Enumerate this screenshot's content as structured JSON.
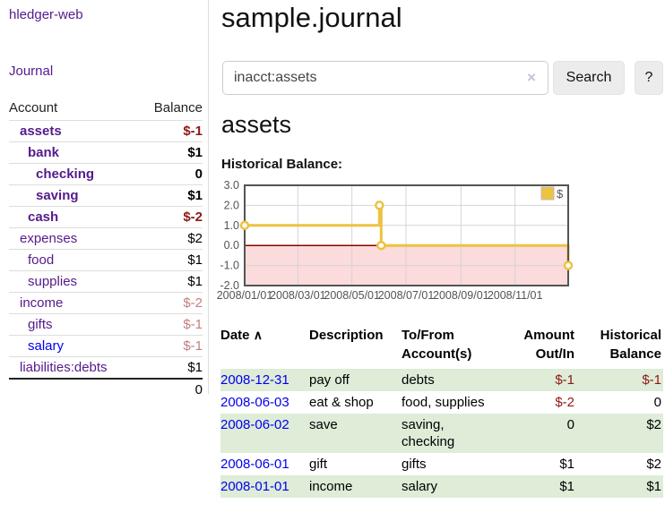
{
  "sidebar": {
    "app_title": "hledger-web",
    "nav": {
      "journal_label": "Journal"
    },
    "accounts_table": {
      "headers": {
        "account": "Account",
        "balance": "Balance"
      },
      "rows": [
        {
          "name": "assets",
          "balance": "$-1"
        },
        {
          "name": "bank",
          "balance": "$1"
        },
        {
          "name": "checking",
          "balance": "0"
        },
        {
          "name": "saving",
          "balance": "$1"
        },
        {
          "name": "cash",
          "balance": "$-2"
        },
        {
          "name": "expenses",
          "balance": "$2"
        },
        {
          "name": "food",
          "balance": "$1"
        },
        {
          "name": "supplies",
          "balance": "$1"
        },
        {
          "name": "income",
          "balance": "$-2"
        },
        {
          "name": "gifts",
          "balance": "$-1"
        },
        {
          "name": "salary",
          "balance": "$-1"
        },
        {
          "name": "liabilities:debts",
          "balance": "$1"
        }
      ],
      "total": "0"
    }
  },
  "header": {
    "title": "sample.journal"
  },
  "search": {
    "query": "inacct:assets",
    "clear_icon": "×",
    "button_label": "Search",
    "help_label": "?"
  },
  "account_heading": "assets",
  "chart_heading": "Historical Balance:",
  "chart_data": {
    "type": "line",
    "step": true,
    "title": "Historical Balance",
    "xlabel": "",
    "ylabel": "",
    "x_range": [
      "2008-01-01",
      "2008-12-31"
    ],
    "ylim": [
      -2,
      3
    ],
    "y_ticks": [
      "3.0",
      "2.0",
      "1.0",
      "0.0",
      "-1.0",
      "-2.0"
    ],
    "x_ticks": [
      {
        "x": "2008-01-01",
        "label": "2008/01/01"
      },
      {
        "x": "2008-03-01",
        "label": "2008/03/01"
      },
      {
        "x": "2008-05-01",
        "label": "2008/05/01"
      },
      {
        "x": "2008-07-01",
        "label": "2008/07/01"
      },
      {
        "x": "2008-09-01",
        "label": "2008/09/01"
      },
      {
        "x": "2008-11-01",
        "label": "2008/11/01"
      }
    ],
    "series": [
      {
        "name": "$",
        "points": [
          {
            "x": "2008-01-01",
            "y": 1
          },
          {
            "x": "2008-06-01",
            "y": 2
          },
          {
            "x": "2008-06-03",
            "y": 0
          },
          {
            "x": "2008-12-31",
            "y": -1
          }
        ]
      }
    ],
    "legend": {
      "position": "top-right",
      "entries": [
        {
          "label": "$",
          "color": "#edc240"
        }
      ]
    },
    "grid": true,
    "line_color": "#edc240",
    "marker_fill": "#ffffff",
    "zero_line_color": "#8b0000",
    "negative_region_color": "#fbdbdb",
    "border_color": "#545454",
    "gridline_color": "#d4d4d4",
    "tick_label_color": "#545454"
  },
  "register": {
    "headers": {
      "date": "Date",
      "sort_indicator": "∧",
      "description": "Description",
      "accounts_line1": "To/From",
      "accounts_line2": "Account(s)",
      "amount_line1": "Amount",
      "amount_line2": "Out/In",
      "balance_line1": "Historical",
      "balance_line2": "Balance"
    },
    "rows": [
      {
        "date": "2008-12-31",
        "description": "pay off",
        "accounts": "debts",
        "amount": "$-1",
        "balance": "$-1"
      },
      {
        "date": "2008-06-03",
        "description": "eat & shop",
        "accounts": "food, supplies",
        "amount": "$-2",
        "balance": "0"
      },
      {
        "date": "2008-06-02",
        "description": "save",
        "accounts": "saving, checking",
        "amount": "0",
        "balance": "$2"
      },
      {
        "date": "2008-06-01",
        "description": "gift",
        "accounts": "gifts",
        "amount": "$1",
        "balance": "$2"
      },
      {
        "date": "2008-01-01",
        "description": "income",
        "accounts": "salary",
        "amount": "$1",
        "balance": "$1"
      }
    ]
  }
}
